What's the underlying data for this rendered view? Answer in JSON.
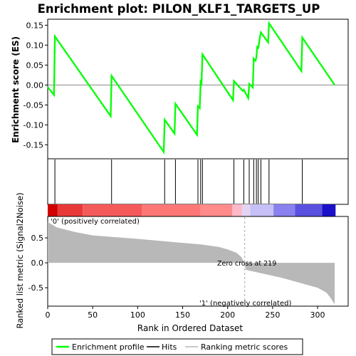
{
  "chart_data": {
    "type": "line",
    "title": "Enrichment plot: PILON_KLF1_TARGETS_UP",
    "top_panel": {
      "ylabel": "Enrichment score (ES)",
      "ylim": [
        -0.185,
        0.165
      ],
      "yticks": [
        0.15,
        0.1,
        0.05,
        0.0,
        -0.05,
        -0.1,
        -0.15
      ],
      "ytick_labels": [
        "0.15",
        "0.10",
        "0.05",
        "0.00",
        "-0.05",
        "-0.10",
        "-0.15"
      ],
      "series": [
        {
          "name": "Enrichment profile",
          "color": "#00ff00",
          "x": [
            0,
            7,
            8,
            70,
            71,
            129,
            130,
            141,
            142,
            166,
            167,
            169,
            170,
            171,
            172,
            206,
            207,
            217,
            218,
            223,
            224,
            228,
            229,
            231,
            232,
            233,
            234,
            236,
            237,
            245,
            246,
            282,
            283,
            319
          ],
          "y": [
            -0.005,
            -0.025,
            0.122,
            -0.078,
            0.023,
            -0.168,
            -0.087,
            -0.122,
            -0.047,
            -0.125,
            -0.053,
            -0.058,
            0.008,
            0.004,
            0.077,
            -0.038,
            0.01,
            -0.015,
            -0.012,
            -0.033,
            0.003,
            -0.006,
            0.066,
            0.061,
            0.07,
            0.098,
            0.091,
            0.121,
            0.132,
            0.107,
            0.155,
            0.035,
            0.119,
            0.0
          ]
        }
      ]
    },
    "hits": {
      "name": "Hits",
      "positions": [
        8,
        71,
        130,
        142,
        167,
        170,
        172,
        207,
        218,
        224,
        229,
        232,
        234,
        237,
        246,
        283
      ]
    },
    "ranking_bar": {
      "colors": [
        "#d00000",
        "#e83838",
        "#f55a5a",
        "#fd7777",
        "#ff8b8b",
        "#ffb8c8",
        "#e4d4f4",
        "#c6c0f6",
        "#8a80ee",
        "#5a50e0",
        "#1a10c8"
      ],
      "stops": [
        0,
        11,
        39,
        105,
        170,
        205,
        216,
        225,
        251,
        275,
        305,
        320
      ]
    },
    "bottom_panel": {
      "ylabel": "Ranked list metric (Signal2Noise)",
      "xlabel": "Rank in Ordered Dataset",
      "ylim": [
        -0.87,
        0.93
      ],
      "yticks": [
        0.5,
        0.0,
        -0.5
      ],
      "ytick_labels": [
        "0.5",
        "0.0",
        "-0.5"
      ],
      "xlim": [
        0,
        334
      ],
      "xticks": [
        0,
        50,
        100,
        150,
        200,
        250,
        300
      ],
      "xtick_labels": [
        "0",
        "50",
        "100",
        "150",
        "200",
        "250",
        "300"
      ],
      "metric_x": [
        0,
        10,
        30,
        50,
        100,
        150,
        170,
        190,
        200,
        210,
        215,
        218,
        219,
        220,
        240,
        260,
        280,
        300,
        310,
        315,
        319
      ],
      "metric_y": [
        0.82,
        0.71,
        0.62,
        0.55,
        0.48,
        0.4,
        0.37,
        0.32,
        0.27,
        0.2,
        0.12,
        0.03,
        0.0,
        -0.14,
        -0.22,
        -0.3,
        -0.4,
        -0.5,
        -0.6,
        -0.72,
        -0.83
      ],
      "metric_color": "#b8b8b8",
      "positive_label": "'0' (positively correlated)",
      "negative_label": "'1' (negatively correlated)",
      "positive_color": "#ff0000",
      "negative_color": "#0000ff",
      "zero_cross_label": "Zero cross at 219",
      "zero_cross": 219
    },
    "legend": {
      "placement": "bottom",
      "items": [
        {
          "label": "Enrichment profile",
          "color": "#00ff00"
        },
        {
          "label": "Hits",
          "color": "#000000"
        },
        {
          "label": "Ranking metric scores",
          "color": "#b8b8b8"
        }
      ]
    }
  }
}
